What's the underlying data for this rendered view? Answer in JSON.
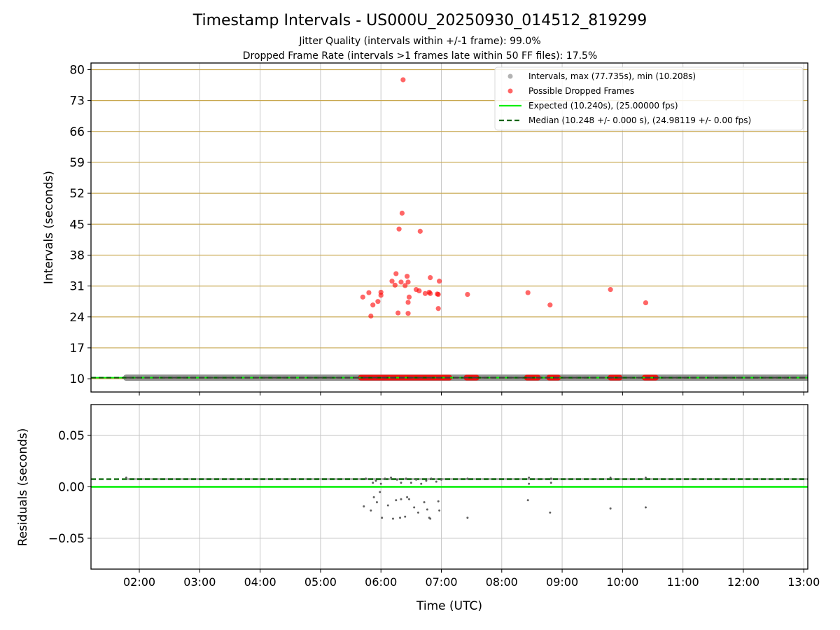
{
  "title": "Timestamp Intervals - US000U_20250930_014512_819299",
  "subtitle_lines": [
    "Jitter Quality (intervals within +/-1 frame): 99.0%",
    "Dropped Frame Rate (intervals >1 frames late within 50 FF files): 17.5%"
  ],
  "colors": {
    "intervals": "#808080",
    "dropped": "#ff0000",
    "expected": "#00ee00",
    "median": "#006400",
    "upper_grid": "#c8a850",
    "grid": "#c8c8c8"
  },
  "chart_data": [
    {
      "type": "scatter",
      "panel": "intervals",
      "title": "Timestamp Intervals - US000U_20250930_014512_819299",
      "xlabel": "",
      "ylabel": "Intervals (seconds)",
      "ylim": [
        7,
        81.5
      ],
      "yticks": [
        10,
        17,
        24,
        31,
        38,
        45,
        52,
        59,
        66,
        73,
        80
      ],
      "ytick_labels": [
        "10",
        "17",
        "24",
        "31",
        "38",
        "45",
        "52",
        "59",
        "66",
        "73",
        "80"
      ],
      "xlim": [
        "01:12",
        "13:04"
      ],
      "grid": true,
      "legend_position": "top-right",
      "legend": [
        "Intervals, max (77.735s), min (10.208s)",
        "Possible Dropped Frames",
        "Expected (10.240s), (25.00000 fps)",
        "Median (10.248 +/- 0.000 s), (24.98119 +/- 0.00 fps)"
      ],
      "series": [
        {
          "name": "Intervals, max (77.735s), min (10.208s)",
          "kind": "band",
          "x_start": "01:47",
          "x_end": "13:04",
          "y": 10.248
        },
        {
          "name": "Possible Dropped Frames",
          "kind": "scatter",
          "points": [
            [
              "06:22",
              77.7
            ],
            [
              "06:21",
              47.5
            ],
            [
              "06:18",
              43.9
            ],
            [
              "06:39",
              43.4
            ],
            [
              "06:15",
              33.8
            ],
            [
              "06:26",
              33.2
            ],
            [
              "06:49",
              32.9
            ],
            [
              "06:11",
              32.1
            ],
            [
              "06:20",
              31.9
            ],
            [
              "06:27",
              31.9
            ],
            [
              "06:58",
              32.1
            ],
            [
              "06:14",
              31.2
            ],
            [
              "06:24",
              31.1
            ],
            [
              "06:35",
              30.2
            ],
            [
              "06:38",
              29.9
            ],
            [
              "06:00",
              29.6
            ],
            [
              "06:48",
              29.6
            ],
            [
              "06:49",
              29.3
            ],
            [
              "06:44",
              29.3
            ],
            [
              "05:48",
              29.5
            ],
            [
              "06:00",
              28.9
            ],
            [
              "06:56",
              29.2
            ],
            [
              "06:57",
              29.1
            ],
            [
              "05:42",
              28.5
            ],
            [
              "06:28",
              28.5
            ],
            [
              "05:57",
              27.5
            ],
            [
              "05:52",
              26.7
            ],
            [
              "06:27",
              27.3
            ],
            [
              "06:57",
              25.9
            ],
            [
              "06:17",
              24.9
            ],
            [
              "06:27",
              24.8
            ],
            [
              "05:50",
              24.2
            ],
            [
              "07:26",
              29.1
            ],
            [
              "08:26",
              29.5
            ],
            [
              "08:48",
              26.7
            ],
            [
              "09:48",
              30.2
            ],
            [
              "10:23",
              27.2
            ]
          ],
          "low_clusters": [
            {
              "from": "05:40",
              "to": "07:08",
              "y": 10.25
            },
            {
              "from": "07:25",
              "to": "07:35",
              "y": 10.25
            },
            {
              "from": "08:25",
              "to": "08:36",
              "y": 10.25
            },
            {
              "from": "08:47",
              "to": "08:56",
              "y": 10.25
            },
            {
              "from": "09:48",
              "to": "09:57",
              "y": 10.25
            },
            {
              "from": "10:22",
              "to": "10:33",
              "y": 10.25
            }
          ]
        },
        {
          "name": "Expected (10.240s), (25.00000 fps)",
          "kind": "hline",
          "y": 10.24
        },
        {
          "name": "Median (10.248 +/- 0.000 s), (24.98119 +/- 0.00 fps)",
          "kind": "hline",
          "y": 10.248
        }
      ]
    },
    {
      "type": "scatter",
      "panel": "residuals",
      "xlabel": "Time (UTC)",
      "ylabel": "Residuals (seconds)",
      "ylim": [
        -0.08,
        0.08
      ],
      "yticks": [
        0.05,
        0,
        -0.05
      ],
      "ytick_labels": [
        "0.05",
        "0.00",
        "−0.05"
      ],
      "xlim": [
        "01:12",
        "13:04"
      ],
      "xticks": [
        "02:00",
        "03:00",
        "04:00",
        "05:00",
        "06:00",
        "07:00",
        "08:00",
        "09:00",
        "10:00",
        "11:00",
        "12:00",
        "13:00"
      ],
      "grid": true,
      "series": [
        {
          "name": "",
          "kind": "hline",
          "y": 0.0
        },
        {
          "name": "",
          "kind": "hline",
          "y": 0.0075
        },
        {
          "name": "",
          "kind": "band",
          "x_start": "01:47",
          "x_end": "13:04",
          "y": 0.0075
        },
        {
          "name": "",
          "kind": "scatter",
          "points": [
            [
              "01:47",
              0.009
            ],
            [
              "05:43",
              -0.019
            ],
            [
              "05:50",
              -0.023
            ],
            [
              "05:53",
              -0.01
            ],
            [
              "05:56",
              -0.015
            ],
            [
              "05:59",
              -0.005
            ],
            [
              "06:01",
              -0.03
            ],
            [
              "06:07",
              -0.018
            ],
            [
              "06:12",
              -0.031
            ],
            [
              "06:15",
              -0.013
            ],
            [
              "06:19",
              -0.03
            ],
            [
              "06:20",
              -0.012
            ],
            [
              "06:24",
              -0.029
            ],
            [
              "06:26",
              -0.01
            ],
            [
              "06:28",
              -0.012
            ],
            [
              "06:33",
              -0.02
            ],
            [
              "06:37",
              -0.025
            ],
            [
              "06:43",
              -0.015
            ],
            [
              "06:46",
              -0.022
            ],
            [
              "06:48",
              -0.03
            ],
            [
              "06:49",
              -0.031
            ],
            [
              "06:57",
              -0.014
            ],
            [
              "06:58",
              -0.023
            ],
            [
              "07:26",
              -0.03
            ],
            [
              "08:26",
              -0.013
            ],
            [
              "08:48",
              -0.025
            ],
            [
              "09:48",
              -0.021
            ],
            [
              "10:23",
              -0.02
            ],
            [
              "05:45",
              0.008
            ],
            [
              "05:52",
              0.004
            ],
            [
              "05:55",
              0.006
            ],
            [
              "06:00",
              0.003
            ],
            [
              "06:04",
              0.008
            ],
            [
              "06:10",
              0.009
            ],
            [
              "06:16",
              0.007
            ],
            [
              "06:20",
              0.004
            ],
            [
              "06:25",
              0.008
            ],
            [
              "06:30",
              0.004
            ],
            [
              "06:35",
              0.007
            ],
            [
              "06:40",
              0.003
            ],
            [
              "06:45",
              0.006
            ],
            [
              "06:50",
              0.008
            ],
            [
              "06:55",
              0.005
            ],
            [
              "07:00",
              0.007
            ],
            [
              "07:26",
              0.008
            ],
            [
              "08:27",
              0.003
            ],
            [
              "08:27",
              0.009
            ],
            [
              "08:49",
              0.004
            ],
            [
              "08:49",
              0.008
            ],
            [
              "09:48",
              0.009
            ],
            [
              "10:23",
              0.009
            ]
          ]
        }
      ]
    }
  ]
}
